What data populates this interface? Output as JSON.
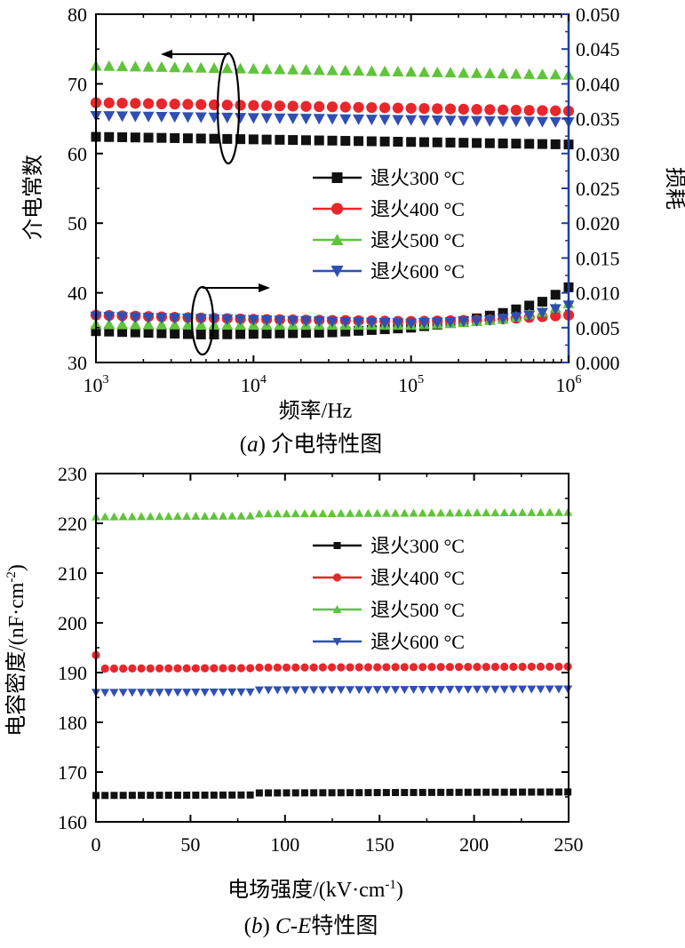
{
  "colors": {
    "black": "#111111",
    "red": "#e8262b",
    "green": "#5fc43a",
    "blue": "#2f4fb5",
    "right_axis": "#1f3f9f"
  },
  "legend_labels": [
    "退火300 °C",
    "退火400 °C",
    "退火500 °C",
    "退火600 °C"
  ],
  "chart_data": [
    {
      "type": "scatter",
      "caption_prefix": "(",
      "caption_letter": "a",
      "caption_suffix": ") 介电特性图",
      "xlabel": "频率/Hz",
      "ylabel": "介电常数",
      "y2label": "损耗",
      "x_scale": "log",
      "xlim": [
        1000,
        1000000
      ],
      "ylim": [
        30,
        80
      ],
      "y2lim": [
        0,
        0.05
      ],
      "x_ticks": [
        "10",
        "10",
        "10",
        "10"
      ],
      "x_tick_exps": [
        "3",
        "4",
        "5",
        "6"
      ],
      "y_ticks": [
        "30",
        "40",
        "50",
        "60",
        "70",
        "80"
      ],
      "y2_ticks": [
        "0.000",
        "0.005",
        "0.010",
        "0.015",
        "0.020",
        "0.025",
        "0.030",
        "0.035",
        "0.040",
        "0.045",
        "0.050"
      ],
      "legend_position": "middle-right",
      "series": [
        {
          "name": "退火300 °C",
          "marker": "square",
          "color": "#111111",
          "axis": "left",
          "points": [
            [
              1000,
              62.4
            ],
            [
              1000000,
              61.3
            ]
          ]
        },
        {
          "name": "退火400 °C",
          "marker": "circle",
          "color": "#e8262b",
          "axis": "left",
          "points": [
            [
              1000,
              67.3
            ],
            [
              1000000,
              66.1
            ]
          ]
        },
        {
          "name": "退火500 °C",
          "marker": "triangle-up",
          "color": "#5fc43a",
          "axis": "left",
          "points": [
            [
              1000,
              72.6
            ],
            [
              1000000,
              71.3
            ]
          ]
        },
        {
          "name": "退火600 °C",
          "marker": "triangle-down",
          "color": "#2f4fb5",
          "axis": "left",
          "points": [
            [
              1000,
              65.4
            ],
            [
              1000000,
              64.5
            ]
          ]
        },
        {
          "name": "退火300 °C",
          "marker": "square",
          "color": "#111111",
          "axis": "right",
          "points": [
            [
              1000,
              0.0045
            ],
            [
              5000,
              0.004
            ],
            [
              30000,
              0.0043
            ],
            [
              100000,
              0.005
            ],
            [
              200000,
              0.0058
            ],
            [
              400000,
              0.0072
            ],
            [
              700000,
              0.0088
            ],
            [
              1000000,
              0.0108
            ]
          ]
        },
        {
          "name": "退火400 °C",
          "marker": "circle",
          "color": "#e8262b",
          "axis": "right",
          "points": [
            [
              1000,
              0.0068
            ],
            [
              10000,
              0.0062
            ],
            [
              100000,
              0.0059
            ],
            [
              300000,
              0.0061
            ],
            [
              600000,
              0.0065
            ],
            [
              1000000,
              0.0068
            ]
          ]
        },
        {
          "name": "退火500 °C",
          "marker": "triangle-up",
          "color": "#5fc43a",
          "axis": "right",
          "points": [
            [
              1000,
              0.0055
            ],
            [
              10000,
              0.0054
            ],
            [
              100000,
              0.0054
            ],
            [
              200000,
              0.0057
            ],
            [
              400000,
              0.0063
            ],
            [
              700000,
              0.0073
            ],
            [
              1000000,
              0.0085
            ]
          ]
        },
        {
          "name": "退火600 °C",
          "marker": "triangle-down",
          "color": "#2f4fb5",
          "axis": "right",
          "points": [
            [
              1000,
              0.0066
            ],
            [
              10000,
              0.0061
            ],
            [
              100000,
              0.0056
            ],
            [
              300000,
              0.006
            ],
            [
              600000,
              0.0068
            ],
            [
              1000000,
              0.0082
            ]
          ]
        }
      ],
      "annotations": [
        "ellipse-with-left-arrow (upper curves → left axis)",
        "ellipse-with-right-arrow (lower curves → right axis)"
      ]
    },
    {
      "type": "scatter",
      "caption_prefix": "(",
      "caption_letter": "b",
      "caption_mid": ") ",
      "caption_ce": "C-E",
      "caption_suffix": "特性图",
      "xlabel": "电场强度/(kV·cm-1)",
      "xlabel_main": "电场强度/(kV·cm",
      "xlabel_sup": "-1",
      "xlabel_end": ")",
      "ylabel": "电容密度/(nF·cm-2)",
      "ylabel_main": "电容密度/(nF·cm",
      "ylabel_sup": "-2",
      "ylabel_end": ")",
      "xlim": [
        0,
        250
      ],
      "ylim": [
        160,
        230
      ],
      "x_ticks": [
        "0",
        "50",
        "100",
        "150",
        "200",
        "250"
      ],
      "y_ticks": [
        "160",
        "170",
        "180",
        "190",
        "200",
        "210",
        "220",
        "230"
      ],
      "legend_position": "top-right",
      "series": [
        {
          "name": "退火300 °C",
          "marker": "square",
          "color": "#111111",
          "points": [
            [
              0,
              165.3
            ],
            [
              84,
              165.4
            ],
            [
              85,
              165.8
            ],
            [
              250,
              166.0
            ]
          ]
        },
        {
          "name": "退火400 °C",
          "marker": "circle",
          "color": "#e8262b",
          "points": [
            [
              0,
              193.5
            ],
            [
              3,
              190.8
            ],
            [
              84,
              190.9
            ],
            [
              85,
              191.0
            ],
            [
              250,
              191.2
            ]
          ]
        },
        {
          "name": "退火500 °C",
          "marker": "triangle-up",
          "color": "#5fc43a",
          "points": [
            [
              0,
              221.3
            ],
            [
              84,
              221.5
            ],
            [
              85,
              221.9
            ],
            [
              250,
              222.2
            ]
          ]
        },
        {
          "name": "退火600 °C",
          "marker": "triangle-down",
          "color": "#2f4fb5",
          "points": [
            [
              0,
              186.0
            ],
            [
              84,
              186.1
            ],
            [
              85,
              186.5
            ],
            [
              250,
              186.7
            ]
          ]
        }
      ]
    }
  ]
}
